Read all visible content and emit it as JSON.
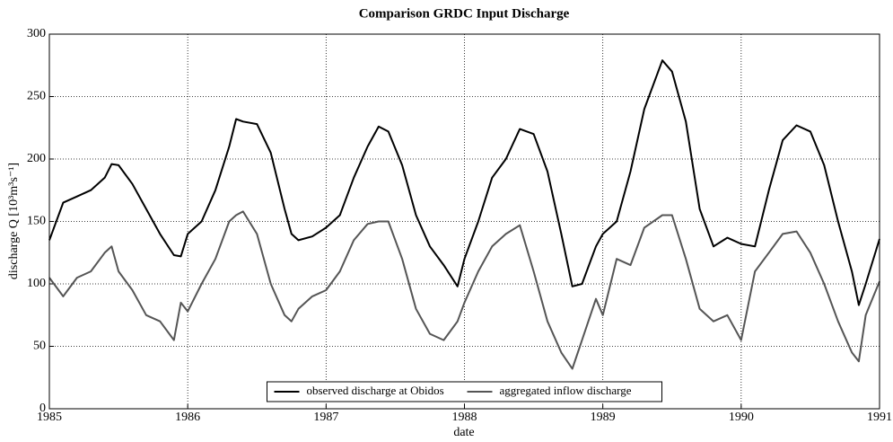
{
  "chart_data": {
    "type": "line",
    "title": "Comparison GRDC Input Discharge",
    "xlabel": "date",
    "ylabel": "discharge Q [10³m³s⁻¹]",
    "x": [
      1985.0,
      1985.1,
      1985.2,
      1985.3,
      1985.4,
      1985.45,
      1985.5,
      1985.6,
      1985.7,
      1985.8,
      1985.9,
      1985.95,
      1986.0,
      1986.1,
      1986.2,
      1986.3,
      1986.35,
      1986.4,
      1986.5,
      1986.6,
      1986.7,
      1986.75,
      1986.8,
      1986.9,
      1987.0,
      1987.1,
      1987.2,
      1987.3,
      1987.38,
      1987.45,
      1987.55,
      1987.65,
      1987.75,
      1987.85,
      1987.95,
      1988.0,
      1988.1,
      1988.2,
      1988.3,
      1988.4,
      1988.5,
      1988.6,
      1988.7,
      1988.78,
      1988.85,
      1988.95,
      1989.0,
      1989.1,
      1989.2,
      1989.3,
      1989.43,
      1989.5,
      1989.6,
      1989.7,
      1989.8,
      1989.9,
      1990.0,
      1990.1,
      1990.2,
      1990.3,
      1990.4,
      1990.5,
      1990.6,
      1990.7,
      1990.8,
      1990.85,
      1990.9,
      1991.0
    ],
    "series": [
      {
        "name": "observed discharge at Obidos",
        "color": "#000000",
        "values": [
          135,
          165,
          170,
          175,
          185,
          196,
          195,
          180,
          160,
          140,
          123,
          122,
          140,
          150,
          175,
          210,
          232,
          230,
          228,
          205,
          160,
          140,
          135,
          138,
          145,
          155,
          185,
          210,
          226,
          222,
          195,
          155,
          130,
          115,
          98,
          120,
          150,
          185,
          200,
          224,
          220,
          190,
          140,
          98,
          100,
          130,
          140,
          150,
          190,
          240,
          279,
          270,
          230,
          160,
          130,
          137,
          132,
          130,
          175,
          215,
          227,
          222,
          195,
          150,
          110,
          83,
          100,
          136
        ]
      },
      {
        "name": "aggregated inflow discharge",
        "color": "#555555",
        "values": [
          105,
          90,
          105,
          110,
          125,
          130,
          110,
          95,
          75,
          70,
          55,
          85,
          78,
          100,
          120,
          150,
          155,
          158,
          140,
          100,
          75,
          70,
          80,
          90,
          95,
          110,
          135,
          148,
          150,
          150,
          120,
          80,
          60,
          55,
          70,
          85,
          110,
          130,
          140,
          147,
          110,
          70,
          45,
          32,
          55,
          88,
          75,
          120,
          115,
          145,
          155,
          155,
          120,
          80,
          70,
          75,
          55,
          110,
          125,
          140,
          142,
          125,
          100,
          70,
          45,
          38,
          75,
          102
        ]
      }
    ],
    "xlim": [
      1985,
      1991
    ],
    "xticks": [
      1985,
      1986,
      1987,
      1988,
      1989,
      1990,
      1991
    ],
    "ylim": [
      0,
      300
    ],
    "yticks": [
      0,
      50,
      100,
      150,
      200,
      250,
      300
    ],
    "grid": true,
    "legend": "lower center"
  }
}
